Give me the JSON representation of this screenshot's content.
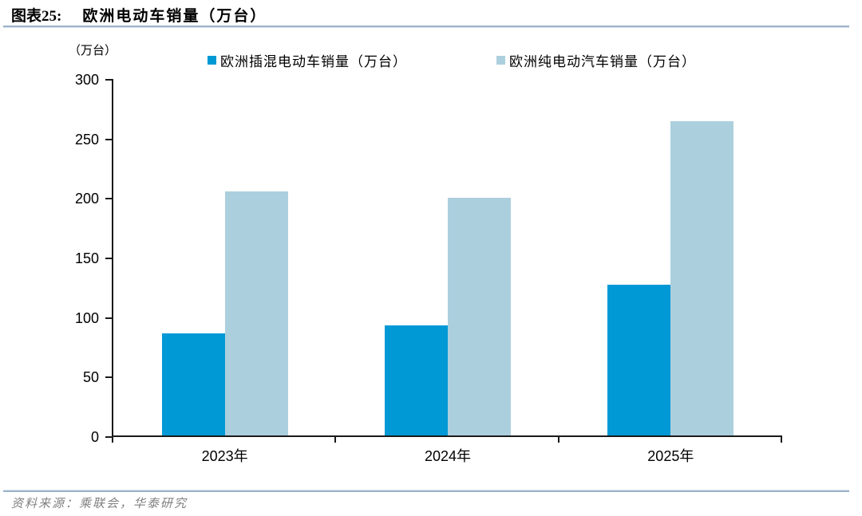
{
  "header": {
    "figure_label": "图表25:",
    "title": "欧洲电动车销量（万台）"
  },
  "chart_data": {
    "type": "bar",
    "title": "欧洲电动车销量（万台）",
    "unit_label": "（万台）",
    "categories": [
      "2023年",
      "2024年",
      "2025年"
    ],
    "series": [
      {
        "name": "欧洲插混电动车销量（万台）",
        "color": "#0099d6",
        "values": [
          87,
          94,
          128
        ]
      },
      {
        "name": "欧洲纯电动汽车销量（万台）",
        "color": "#accfde",
        "values": [
          206,
          201,
          265
        ]
      }
    ],
    "ylim": [
      0,
      300
    ],
    "y_ticks": [
      0,
      50,
      100,
      150,
      200,
      250,
      300
    ],
    "xlabel": "",
    "ylabel": "",
    "grid": false,
    "legend_position": "top"
  },
  "source": {
    "text": "资料来源：乘联会，华泰研究"
  },
  "colors": {
    "bar_dark": "#0099d6",
    "bar_light": "#accfde",
    "divider": "#9db3cb",
    "axis": "#1a1a1a",
    "source_text": "#808080"
  }
}
